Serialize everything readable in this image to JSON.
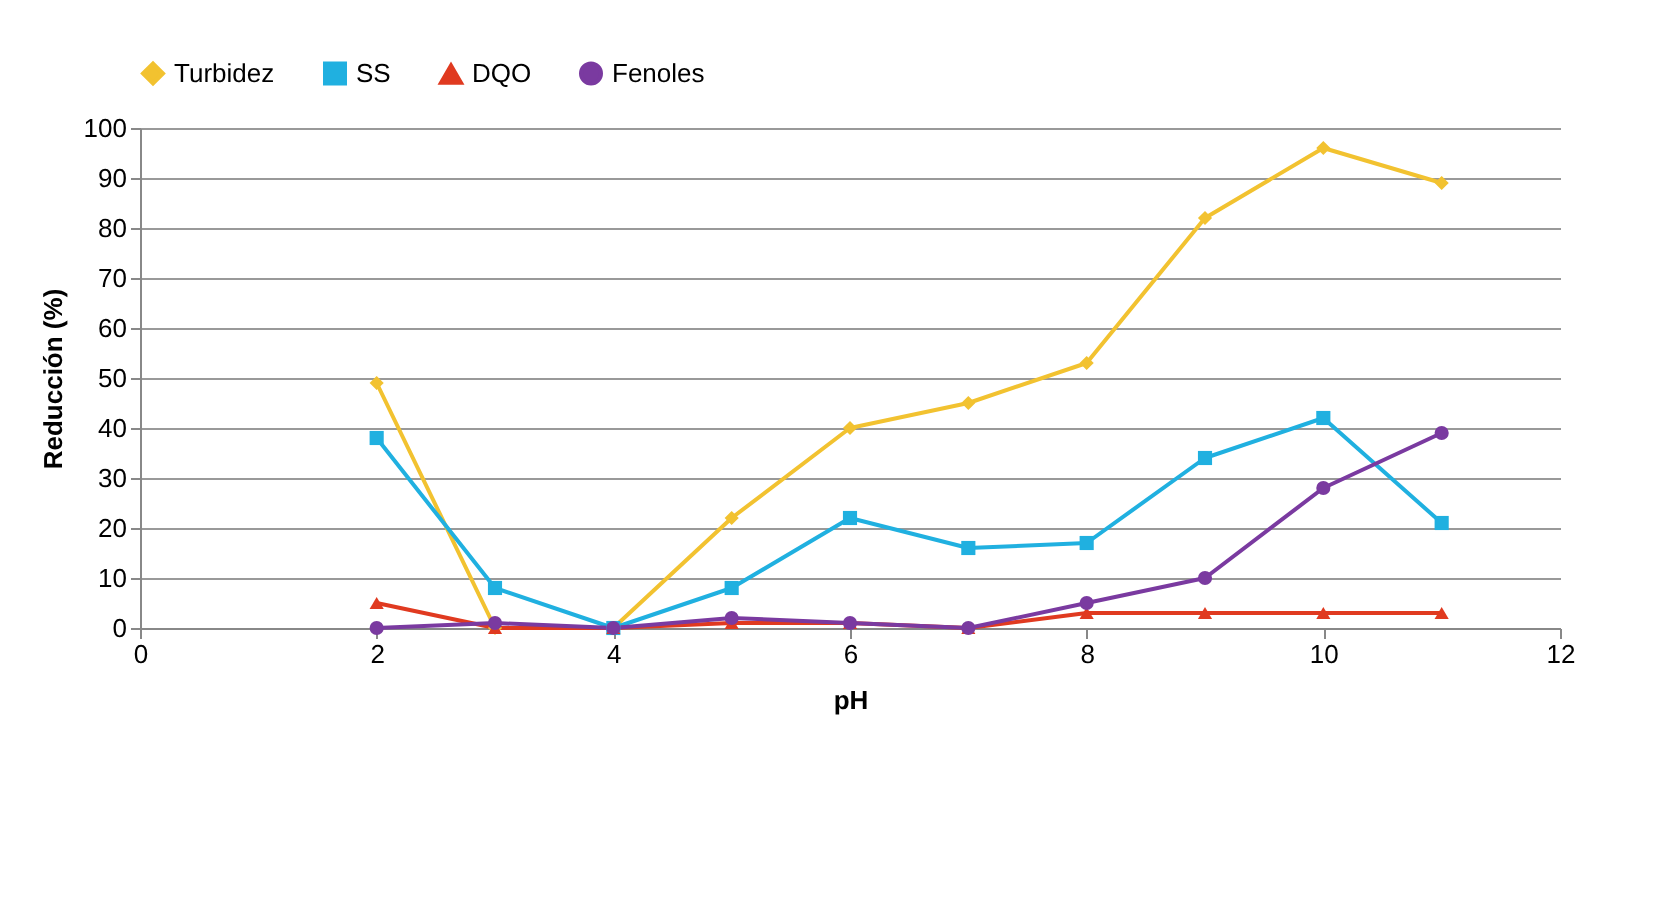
{
  "chart_data": {
    "type": "line",
    "xlabel": "pH",
    "ylabel": "Reducción (%)",
    "x": [
      2,
      3,
      4,
      5,
      6,
      7,
      8,
      9,
      10,
      11
    ],
    "series": [
      {
        "name": "Turbidez",
        "color": "#f2c230",
        "marker": "diamond",
        "values": [
          49,
          0,
          0,
          22,
          40,
          45,
          53,
          82,
          96,
          89
        ]
      },
      {
        "name": "SS",
        "color": "#20b0e0",
        "marker": "square",
        "values": [
          38,
          8,
          0,
          8,
          22,
          16,
          17,
          34,
          42,
          21
        ]
      },
      {
        "name": "DQO",
        "color": "#e03a20",
        "marker": "triangle",
        "values": [
          5,
          0,
          0,
          1,
          1,
          0,
          3,
          3,
          3,
          3
        ]
      },
      {
        "name": "Fenoles",
        "color": "#7a3aa0",
        "marker": "circle",
        "values": [
          0,
          1,
          0,
          2,
          1,
          0,
          5,
          10,
          28,
          39
        ]
      }
    ],
    "xlim": [
      0,
      12
    ],
    "xticks": [
      0,
      2,
      4,
      6,
      8,
      10,
      12
    ],
    "ylim": [
      0,
      100
    ],
    "yticks": [
      0,
      10,
      20,
      30,
      40,
      50,
      60,
      70,
      80,
      90,
      100
    ],
    "grid": "y",
    "legend": "top",
    "line_style": "solid"
  }
}
